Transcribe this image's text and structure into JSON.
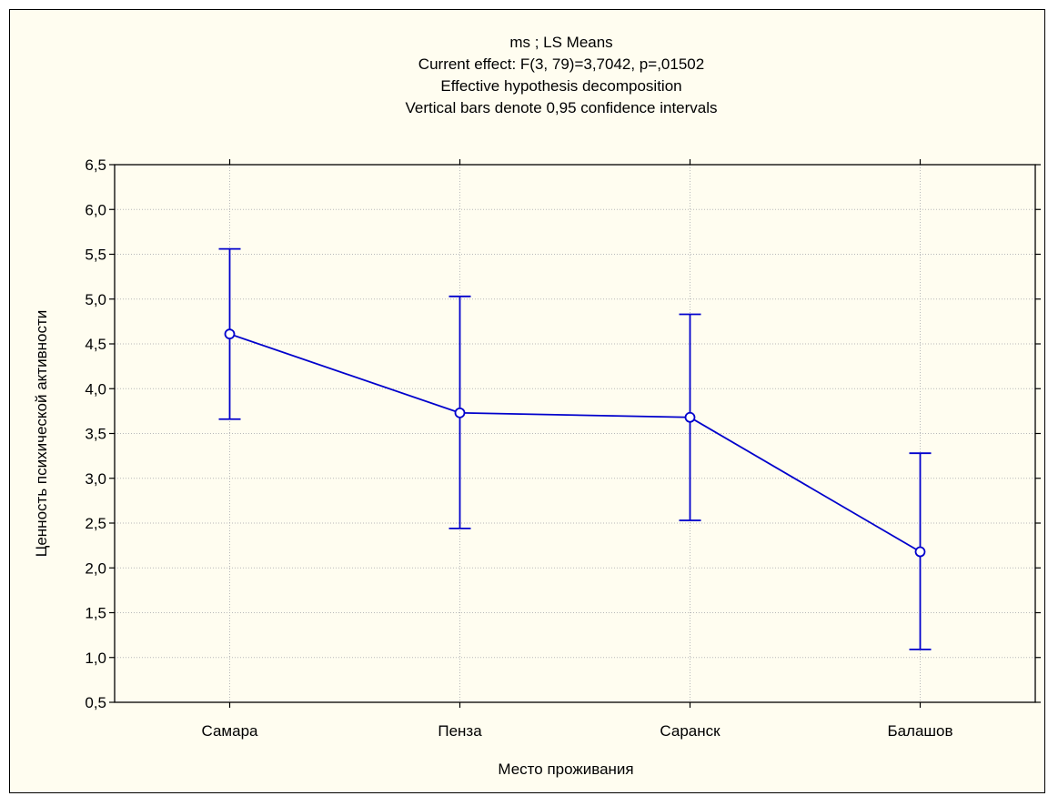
{
  "chart_data": {
    "type": "line",
    "title_lines": [
      "ms ; LS Means",
      "Current effect: F(3, 79)=3,7042, p=,01502",
      "Effective hypothesis decomposition",
      "Vertical bars denote 0,95 confidence intervals"
    ],
    "xlabel": "Место проживания",
    "ylabel": "Ценность психической активности",
    "categories": [
      "Самара",
      "Пенза",
      "Саранск",
      "Балашов"
    ],
    "means": [
      4.61,
      3.73,
      3.68,
      2.18
    ],
    "ci_lower": [
      3.66,
      2.44,
      2.53,
      1.09
    ],
    "ci_upper": [
      5.56,
      5.03,
      4.83,
      3.28
    ],
    "ylim": [
      0.5,
      6.5
    ],
    "yticks": [
      0.5,
      1.0,
      1.5,
      2.0,
      2.5,
      3.0,
      3.5,
      4.0,
      4.5,
      5.0,
      5.5,
      6.0,
      6.5
    ],
    "ytick_labels": [
      "0,5",
      "1,0",
      "1,5",
      "2,0",
      "2,5",
      "3,0",
      "3,5",
      "4,0",
      "4,5",
      "5,0",
      "5,5",
      "6,0",
      "6,5"
    ],
    "grid": true,
    "colors": {
      "series": "#0000cc",
      "grid": "#b8b8b8",
      "background": "#fffdf0"
    }
  }
}
